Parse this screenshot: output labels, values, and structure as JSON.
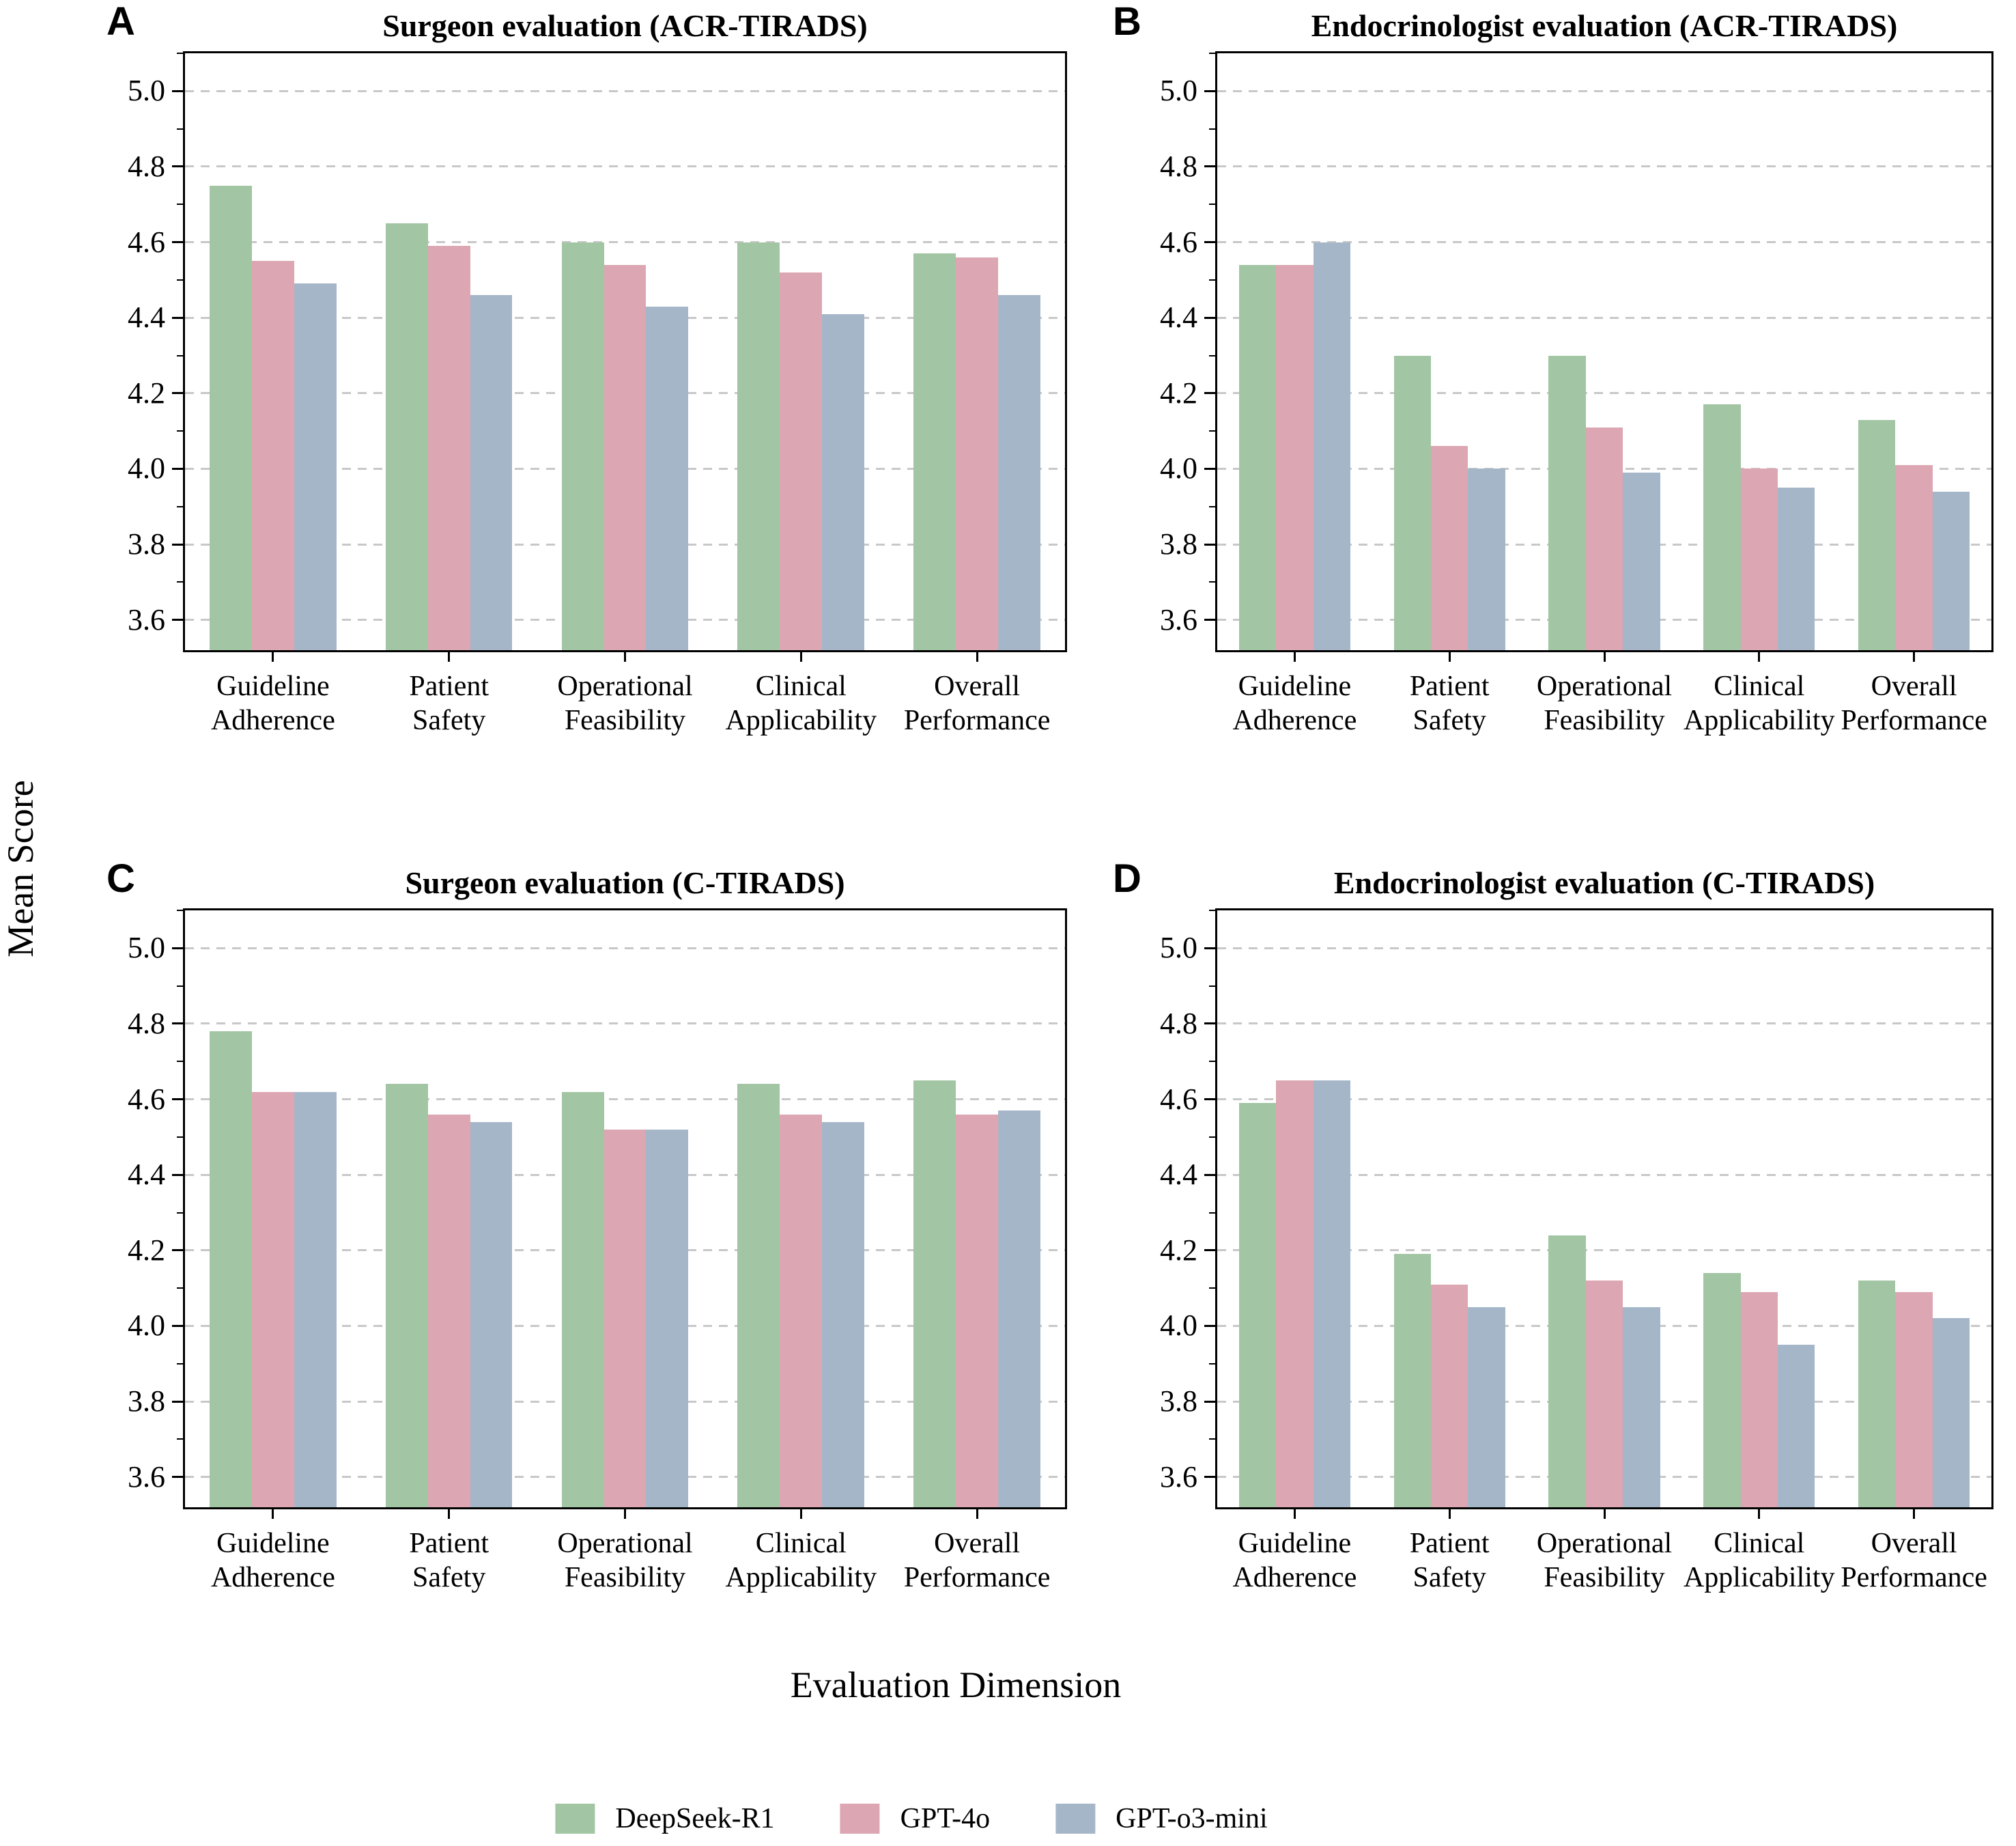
{
  "figure": {
    "ylabel": "Mean Score",
    "xlabel": "Evaluation Dimension",
    "legend_position": "bottom",
    "legend": [
      {
        "label": "DeepSeek-R1",
        "color": "#a2c5a3"
      },
      {
        "label": "GPT-4o",
        "color": "#dca6b2"
      },
      {
        "label": "GPT-o3-mini",
        "color": "#a6b6c9"
      }
    ],
    "grid_color": "#c8c8c8",
    "spine_color": "#000000"
  },
  "chart_data": [
    {
      "panel": "A",
      "type": "bar",
      "title": "Surgeon evaluation (ACR-TIRADS)",
      "categories": [
        "Guideline Adherence",
        "Patient Safety",
        "Operational Feasibility",
        "Clinical Applicability",
        "Overall Performance"
      ],
      "series": [
        {
          "name": "DeepSeek-R1",
          "values": [
            4.75,
            4.65,
            4.6,
            4.6,
            4.57
          ]
        },
        {
          "name": "GPT-4o",
          "values": [
            4.55,
            4.59,
            4.54,
            4.52,
            4.56
          ]
        },
        {
          "name": "GPT-o3-mini",
          "values": [
            4.49,
            4.46,
            4.43,
            4.41,
            4.46
          ]
        }
      ],
      "ylim": [
        3.52,
        5.1
      ],
      "yticks": [
        3.6,
        3.8,
        4.0,
        4.2,
        4.4,
        4.6,
        4.8,
        5.0
      ],
      "grid": "dashed-horizontal"
    },
    {
      "panel": "B",
      "type": "bar",
      "title": "Endocrinologist evaluation (ACR-TIRADS)",
      "categories": [
        "Guideline Adherence",
        "Patient Safety",
        "Operational Feasibility",
        "Clinical Applicability",
        "Overall Performance"
      ],
      "series": [
        {
          "name": "DeepSeek-R1",
          "values": [
            4.54,
            4.3,
            4.3,
            4.17,
            4.13
          ]
        },
        {
          "name": "GPT-4o",
          "values": [
            4.54,
            4.06,
            4.11,
            4.0,
            4.01
          ]
        },
        {
          "name": "GPT-o3-mini",
          "values": [
            4.6,
            4.0,
            3.99,
            3.95,
            3.94
          ]
        }
      ],
      "ylim": [
        3.52,
        5.1
      ],
      "yticks": [
        3.6,
        3.8,
        4.0,
        4.2,
        4.4,
        4.6,
        4.8,
        5.0
      ],
      "grid": "dashed-horizontal"
    },
    {
      "panel": "C",
      "type": "bar",
      "title": "Surgeon evaluation (C-TIRADS)",
      "categories": [
        "Guideline Adherence",
        "Patient Safety",
        "Operational Feasibility",
        "Clinical Applicability",
        "Overall Performance"
      ],
      "series": [
        {
          "name": "DeepSeek-R1",
          "values": [
            4.78,
            4.64,
            4.62,
            4.64,
            4.65
          ]
        },
        {
          "name": "GPT-4o",
          "values": [
            4.62,
            4.56,
            4.52,
            4.56,
            4.56
          ]
        },
        {
          "name": "GPT-o3-mini",
          "values": [
            4.62,
            4.54,
            4.52,
            4.54,
            4.57
          ]
        }
      ],
      "ylim": [
        3.52,
        5.1
      ],
      "yticks": [
        3.6,
        3.8,
        4.0,
        4.2,
        4.4,
        4.6,
        4.8,
        5.0
      ],
      "grid": "dashed-horizontal"
    },
    {
      "panel": "D",
      "type": "bar",
      "title": "Endocrinologist evaluation (C-TIRADS)",
      "categories": [
        "Guideline Adherence",
        "Patient Safety",
        "Operational Feasibility",
        "Clinical Applicability",
        "Overall Performance"
      ],
      "series": [
        {
          "name": "DeepSeek-R1",
          "values": [
            4.59,
            4.19,
            4.24,
            4.14,
            4.12
          ]
        },
        {
          "name": "GPT-4o",
          "values": [
            4.65,
            4.11,
            4.12,
            4.09,
            4.09
          ]
        },
        {
          "name": "GPT-o3-mini",
          "values": [
            4.65,
            4.05,
            4.05,
            3.95,
            4.02
          ]
        }
      ],
      "ylim": [
        3.52,
        5.1
      ],
      "yticks": [
        3.6,
        3.8,
        4.0,
        4.2,
        4.4,
        4.6,
        4.8,
        5.0
      ],
      "grid": "dashed-horizontal"
    }
  ]
}
